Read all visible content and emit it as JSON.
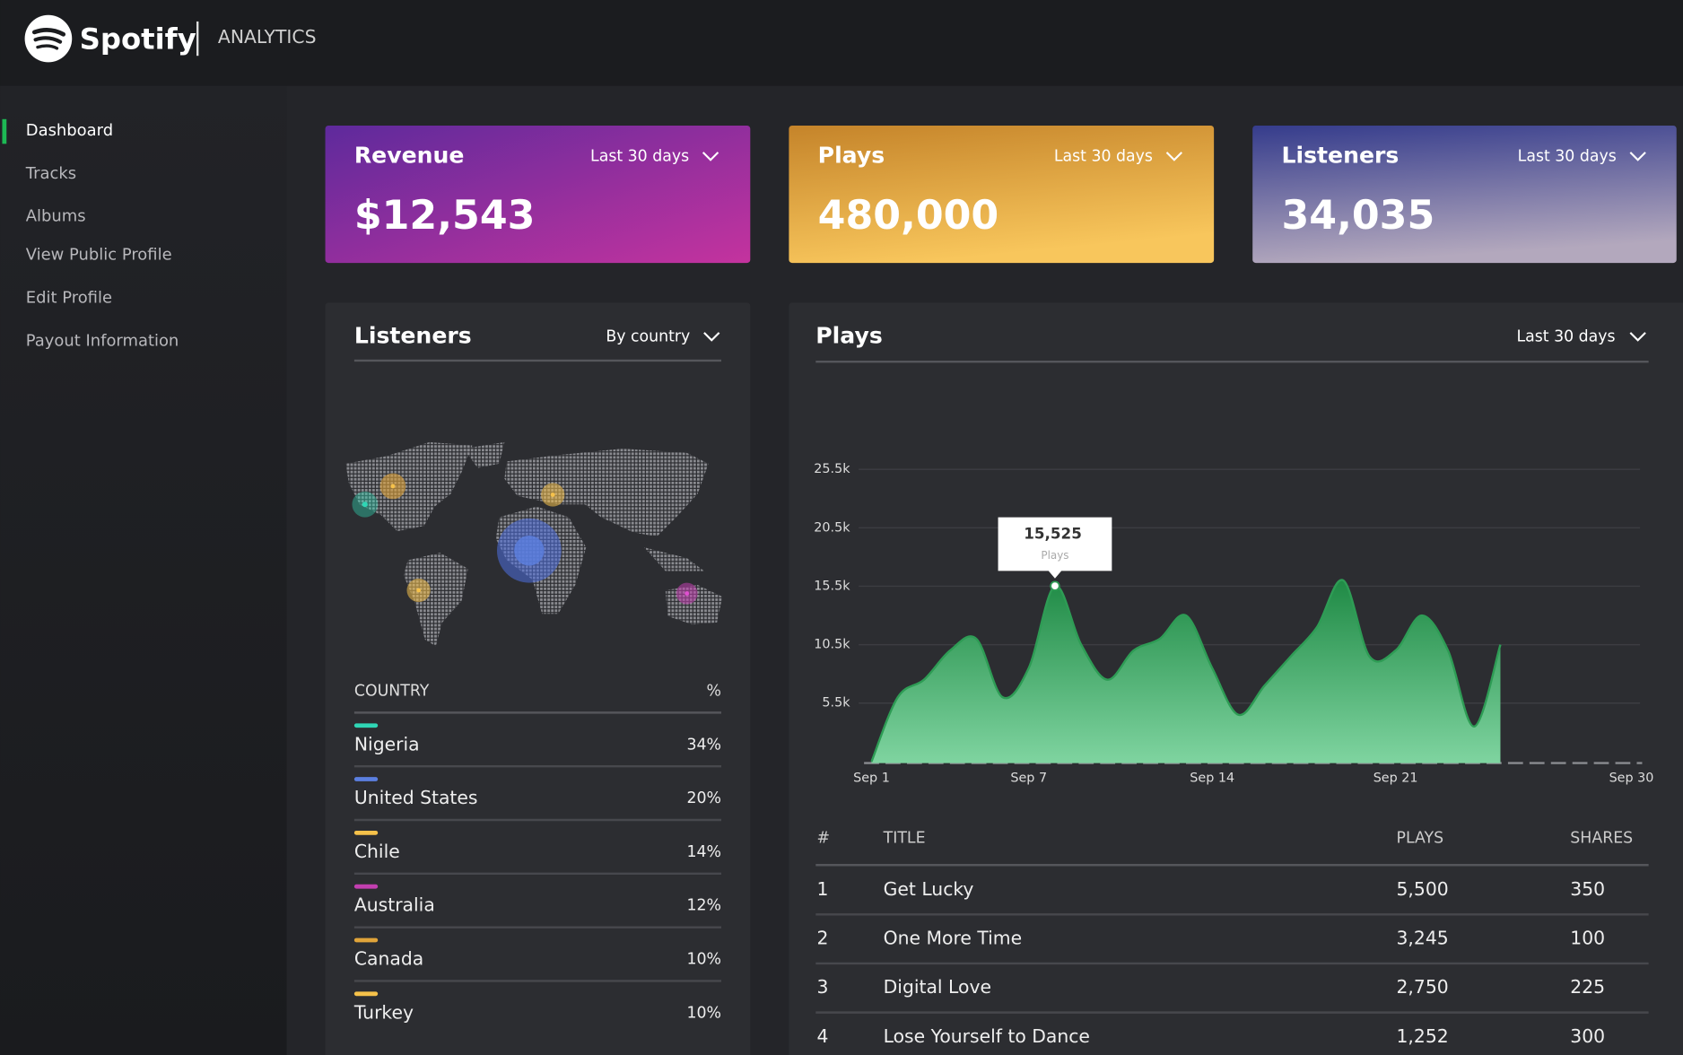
{
  "header": {
    "brand": "Spotify",
    "section": "ANALYTICS"
  },
  "sidebar": [
    "Dashboard",
    "Tracks",
    "Albums",
    "View Public Profile",
    "Edit Profile",
    "Payout Information"
  ],
  "cards": [
    {
      "title": "Revenue",
      "period": "Last 30 days",
      "value": "$12,543"
    },
    {
      "title": "Plays",
      "period": "Last 30 days",
      "value": "480,000"
    },
    {
      "title": "Listeners",
      "period": "Last 30 days",
      "value": "34,035"
    }
  ],
  "listeners": {
    "title": "Listeners",
    "filter": "By country",
    "columns": [
      "COUNTRY",
      "%"
    ],
    "rows": [
      {
        "country": "Nigeria",
        "share": "34%",
        "color": "#2fd6b5"
      },
      {
        "country": "United States",
        "share": "20%",
        "color": "#5b7fe0"
      },
      {
        "country": "Chile",
        "share": "14%",
        "color": "#f5c14a"
      },
      {
        "country": "Australia",
        "share": "12%",
        "color": "#c23fb0"
      },
      {
        "country": "Canada",
        "share": "10%",
        "color": "#e0a43a"
      },
      {
        "country": "Turkey",
        "share": "10%",
        "color": "#f5c14a"
      }
    ]
  },
  "plays": {
    "title": "Plays",
    "filter": "Last 30 days",
    "tracks": {
      "columns": [
        "#",
        "TITLE",
        "PLAYS",
        "SHARES"
      ],
      "rows": [
        [
          "1",
          "Get Lucky",
          "5,500",
          "350"
        ],
        [
          "2",
          "One More Time",
          "3,245",
          "100"
        ],
        [
          "3",
          "Digital Love",
          "2,750",
          "225"
        ],
        [
          "4",
          "Lose Yourself to Dance",
          "1,252",
          "300"
        ]
      ]
    }
  },
  "chart_data": {
    "type": "area",
    "categories": [
      "Sep 1",
      null,
      null,
      null,
      null,
      null,
      "Sep 7",
      null,
      null,
      null,
      null,
      null,
      null,
      "Sep 14",
      null,
      null,
      null,
      null,
      null,
      null,
      "Sep 21",
      null,
      null,
      null,
      null,
      null,
      null,
      null,
      null,
      "Sep 30"
    ],
    "series": [
      {
        "name": "Plays",
        "color": "#2e9c55",
        "values": [
          500,
          6000,
          7500,
          10000,
          11000,
          6000,
          8500,
          15525,
          10500,
          7500,
          10000,
          11000,
          13000,
          8500,
          4500,
          7000,
          9500,
          12000,
          16000,
          9500,
          10000,
          13000,
          10000,
          3500,
          10500,
          null,
          null,
          null,
          null,
          null
        ],
        "value_labels": [
          null,
          null,
          null,
          null,
          null,
          null,
          null,
          "15,525",
          null,
          null,
          null,
          null,
          null,
          null,
          null,
          null,
          null,
          null,
          null,
          null,
          null,
          null,
          null,
          null,
          null,
          null,
          null,
          null,
          null,
          null
        ]
      }
    ],
    "ylim": [
      0,
      27000
    ],
    "yticks": [
      {
        "value": 5500,
        "label": "5.5k"
      },
      {
        "value": 10500,
        "label": "10.5k"
      },
      {
        "value": 15500,
        "label": "15.5k"
      },
      {
        "value": 20500,
        "label": "20.5k"
      },
      {
        "value": 25500,
        "label": "25.5k"
      }
    ],
    "grid": true
  }
}
